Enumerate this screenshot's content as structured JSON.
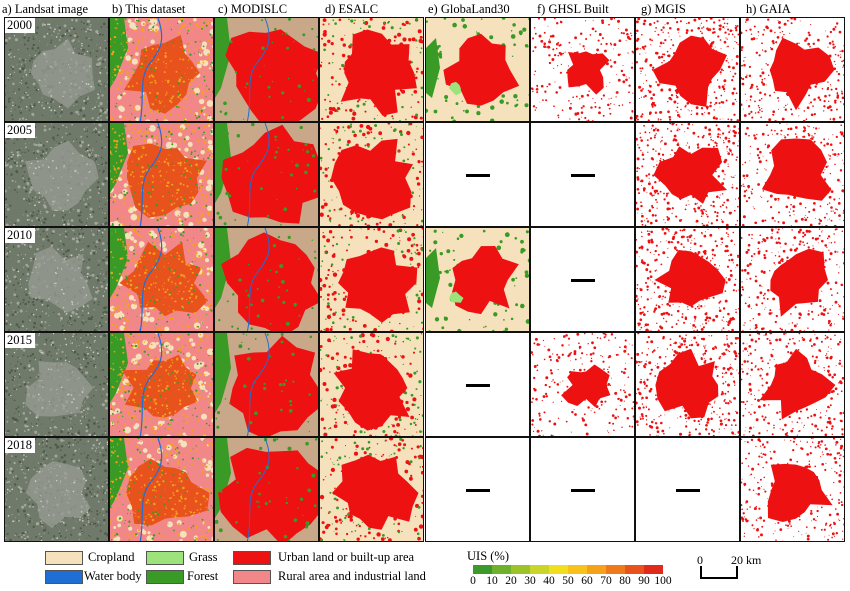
{
  "columns": [
    {
      "key": "landsat",
      "label": "a) Landsat image"
    },
    {
      "key": "dataset",
      "label": "b) This dataset"
    },
    {
      "key": "modis",
      "label": "c) MODISLC"
    },
    {
      "key": "esa",
      "label": "d) ESALC"
    },
    {
      "key": "globe",
      "label": "e) GlobaLand30"
    },
    {
      "key": "ghsl",
      "label": "f) GHSL Built"
    },
    {
      "key": "mgis",
      "label": "g) MGIS"
    },
    {
      "key": "gaia",
      "label": "h) GAIA"
    }
  ],
  "rows": [
    {
      "year": "2000",
      "cells": [
        "landsat",
        "dataset",
        "modis",
        "esa",
        "globe",
        "ghsl",
        "mgis",
        "gaia"
      ]
    },
    {
      "year": "2005",
      "cells": [
        "landsat",
        "dataset",
        "modis",
        "esa",
        "none",
        "none",
        "mgis",
        "gaia"
      ]
    },
    {
      "year": "2010",
      "cells": [
        "landsat",
        "dataset",
        "modis",
        "esa",
        "globe",
        "none",
        "mgis",
        "gaia"
      ]
    },
    {
      "year": "2015",
      "cells": [
        "landsat",
        "dataset",
        "modis",
        "esa",
        "none",
        "ghsl",
        "mgis",
        "gaia"
      ]
    },
    {
      "year": "2018",
      "cells": [
        "landsat",
        "dataset",
        "modis",
        "esa",
        "none",
        "none",
        "none",
        "gaia"
      ]
    }
  ],
  "legend": {
    "items": [
      {
        "label": "Cropland",
        "color": "#f5e1bc"
      },
      {
        "label": "Water body",
        "color": "#1f6ed4"
      },
      {
        "label": "Grass",
        "color": "#9be37a"
      },
      {
        "label": "Forest",
        "color": "#3a9a26"
      },
      {
        "label": "Urban land or built-up area",
        "color": "#ee1111"
      },
      {
        "label": "Rural area and industrial land",
        "color": "#f2878a"
      }
    ],
    "uis_title": "UIS (%)",
    "uis_ticks": [
      "0",
      "10",
      "20",
      "30",
      "40",
      "50",
      "60",
      "70",
      "80",
      "90",
      "100"
    ],
    "uis_colors": [
      "#3c9a2a",
      "#6fb12b",
      "#9cc42a",
      "#c9d629",
      "#f1de1f",
      "#f7c21a",
      "#f5a11a",
      "#ef7a1c",
      "#e8521c",
      "#e02a1c"
    ]
  },
  "scalebar": {
    "left_label": "0",
    "right_label": "20 km"
  },
  "colors": {
    "urban": "#ee1111",
    "cropland": "#f5e1bc",
    "forest": "#3a9a26",
    "grass": "#9be37a",
    "water": "#1f6ed4",
    "rural": "#f2878a",
    "landsat_base": "#6f7a6a",
    "uis_high": "#e8521c"
  }
}
